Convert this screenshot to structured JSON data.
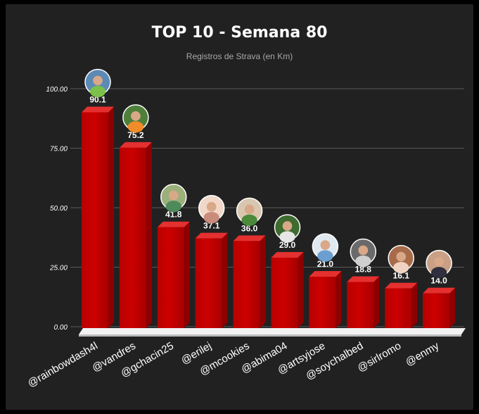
{
  "chart_data": {
    "type": "bar",
    "title": "TOP 10 - Semana 80",
    "subtitle": "Registros de Strava (en Km)",
    "xlabel": "",
    "ylabel": "",
    "ylim": [
      0,
      100
    ],
    "yticks": [
      "0.00",
      "25.00",
      "50.00",
      "75.00",
      "100.00"
    ],
    "grid": true,
    "categories": [
      "@rainbowdash4l",
      "@vandres",
      "@gchacin25",
      "@erilej",
      "@mcookies",
      "@abima04",
      "@artsyjose",
      "@soychalbed",
      "@sirlromo",
      "@enmy"
    ],
    "values": [
      90.1,
      75.2,
      41.8,
      37.1,
      36.0,
      29.0,
      21.0,
      18.8,
      16.1,
      14.0
    ],
    "value_labels": [
      "90.1",
      "75.2",
      "41.8",
      "37.1",
      "36.0",
      "29.0",
      "21.0",
      "18.8",
      "16.1",
      "14.0"
    ],
    "bar_color": "#cc0000",
    "bar_top_color": "#e53030",
    "bar_side_color": "#8e0000",
    "avatars": [
      "runner-avatar",
      "man-outdoor-avatar",
      "man-forest-avatar",
      "woman-avatar",
      "woman-garden-avatar",
      "man-standing-avatar",
      "man-cap-avatar",
      "man-bald-avatar",
      "woman-smiling-avatar",
      "woman-dark-hair-avatar"
    ]
  }
}
